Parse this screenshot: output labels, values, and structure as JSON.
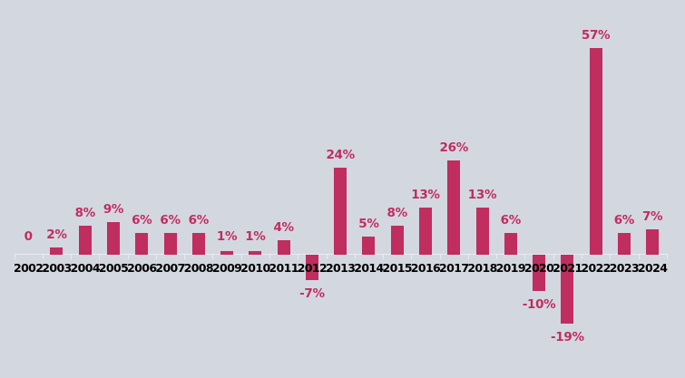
{
  "chart": {
    "background_color": "#d3d7e0",
    "bar_color": "#c02d5f",
    "value_label_color": "#c02d5f",
    "year_label_color": "#000000",
    "axis_line_color": "#e9ebf2"
  },
  "chart_data": {
    "type": "bar",
    "title": "",
    "xlabel": "",
    "ylabel": "",
    "categories": [
      "2002",
      "2003",
      "2004",
      "2005",
      "2006",
      "2007",
      "2008",
      "2009",
      "2010",
      "2011",
      "2012",
      "2013",
      "2014",
      "2015",
      "2016",
      "2017",
      "2018",
      "2019",
      "2020",
      "2021",
      "2022",
      "2023",
      "2024"
    ],
    "values": [
      0,
      2,
      8,
      9,
      6,
      6,
      6,
      1,
      1,
      4,
      -7,
      24,
      5,
      8,
      13,
      26,
      13,
      6,
      -10,
      -19,
      57,
      6,
      7
    ],
    "value_labels": [
      "0",
      "2%",
      "8%",
      "9%",
      "6%",
      "6%",
      "6%",
      "1%",
      "1%",
      "4%",
      "-7%",
      "24%",
      "5%",
      "8%",
      "13%",
      "26%",
      "13%",
      "6%",
      "-10%",
      "-19%",
      "57%",
      "6%",
      "7%"
    ],
    "ylim": [
      -19,
      57
    ],
    "grid": false,
    "legend": false,
    "data_label_position": "outside-end",
    "x_axis": "category ticks between years, labels below baseline, negative bars drawn behind year labels"
  }
}
